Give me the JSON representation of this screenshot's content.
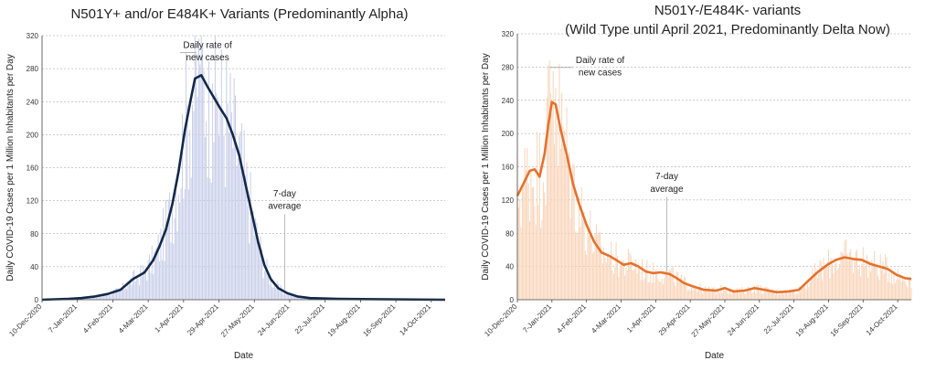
{
  "chart_data": [
    {
      "type": "bar",
      "title": "N501Y+ and/or E484K+ Variants (Predominantly Alpha)",
      "subtitle": "",
      "xlabel": "Date",
      "ylabel": "Daily COVID-19 Cases per 1 Million Inhabitants per Day",
      "ylim": [
        0,
        320
      ],
      "yticks": [
        0,
        40,
        80,
        120,
        160,
        200,
        240,
        280,
        320
      ],
      "xlim": [
        "2020-12-10",
        "2021-10-25"
      ],
      "xticks": [
        "10-Dec-2020",
        "7-Jan-2021",
        "4-Feb-2021",
        "4-Mar-2021",
        "1-Apr-2021",
        "29-Apr-2021",
        "27-May-2021",
        "24-Jun-2021",
        "22-Jul-2021",
        "19-Aug-2021",
        "16-Sep-2021",
        "14-Oct-2021"
      ],
      "grid": "horizontal",
      "colors": {
        "bars": "#c7cde8",
        "line": "#13294b"
      },
      "annotations": [
        {
          "text": "Daily rate of",
          "x": "2021-04-20",
          "y": 305
        },
        {
          "text": "new cases",
          "x": "2021-04-20",
          "y": 290
        },
        {
          "text": "7-day",
          "x": "2021-06-20",
          "y": 125
        },
        {
          "text": "average",
          "x": "2021-06-20",
          "y": 110
        }
      ],
      "series": [
        {
          "type": "line",
          "points": [
            [
              "2020-12-10",
              0
            ],
            [
              "2020-12-20",
              0.5
            ],
            [
              "2020-12-31",
              1
            ],
            [
              "2021-01-10",
              2
            ],
            [
              "2021-01-21",
              4
            ],
            [
              "2021-01-31",
              7
            ],
            [
              "2021-02-10",
              12
            ],
            [
              "2021-02-20",
              25
            ],
            [
              "2021-03-01",
              33
            ],
            [
              "2021-03-08",
              48
            ],
            [
              "2021-03-13",
              65
            ],
            [
              "2021-03-18",
              85
            ],
            [
              "2021-03-23",
              115
            ],
            [
              "2021-03-28",
              155
            ],
            [
              "2021-04-02",
              205
            ],
            [
              "2021-04-07",
              245
            ],
            [
              "2021-04-10",
              268
            ],
            [
              "2021-04-15",
              272
            ],
            [
              "2021-04-20",
              258
            ],
            [
              "2021-04-25",
              245
            ],
            [
              "2021-04-30",
              232
            ],
            [
              "2021-05-05",
              220
            ],
            [
              "2021-05-10",
              200
            ],
            [
              "2021-05-15",
              175
            ],
            [
              "2021-05-20",
              140
            ],
            [
              "2021-05-25",
              105
            ],
            [
              "2021-05-30",
              70
            ],
            [
              "2021-06-04",
              42
            ],
            [
              "2021-06-09",
              25
            ],
            [
              "2021-06-15",
              14
            ],
            [
              "2021-06-22",
              8
            ],
            [
              "2021-06-30",
              4
            ],
            [
              "2021-07-10",
              2
            ],
            [
              "2021-08-01",
              1
            ],
            [
              "2021-10-25",
              0
            ]
          ]
        },
        {
          "type": "bar",
          "points": [
            [
              "2021-04-11",
              298
            ],
            [
              "2021-04-14",
              285
            ],
            [
              "2021-04-17",
              278
            ],
            [
              "2021-04-21",
              288
            ],
            [
              "2021-04-24",
              262
            ],
            [
              "2021-04-28",
              245
            ]
          ]
        }
      ]
    },
    {
      "type": "bar",
      "title": "N501Y-/E484K- variants",
      "subtitle": "(Wild Type until April 2021, Predominantly Delta Now)",
      "xlabel": "Date",
      "ylabel": "Daily COVID-19 Cases per 1 Million Inhabitants per Day",
      "ylim": [
        0,
        320
      ],
      "yticks": [
        0,
        40,
        80,
        120,
        160,
        200,
        240,
        280,
        320
      ],
      "xlim": [
        "2020-12-10",
        "2021-10-25"
      ],
      "xticks": [
        "10-Dec-2020",
        "7-Jan-2021",
        "4-Feb-2021",
        "4-Mar-2021",
        "1-Apr-2021",
        "29-Apr-2021",
        "27-May-2021",
        "24-Jun-2021",
        "22-Jul-2021",
        "19-Aug-2021",
        "16-Sep-2021",
        "14-Oct-2021"
      ],
      "grid": "horizontal",
      "colors": {
        "bars": "#f9d3b6",
        "line": "#e8702a"
      },
      "annotations": [
        {
          "text": "Daily rate of",
          "x": "2021-02-15",
          "y": 285
        },
        {
          "text": "new cases",
          "x": "2021-02-15",
          "y": 270
        },
        {
          "text": "7-day",
          "x": "2021-04-10",
          "y": 145
        },
        {
          "text": "average",
          "x": "2021-04-10",
          "y": 130
        }
      ],
      "series": [
        {
          "type": "line",
          "points": [
            [
              "2020-12-10",
              125
            ],
            [
              "2020-12-15",
              140
            ],
            [
              "2020-12-20",
              155
            ],
            [
              "2020-12-24",
              157
            ],
            [
              "2020-12-28",
              148
            ],
            [
              "2021-01-01",
              175
            ],
            [
              "2021-01-04",
              210
            ],
            [
              "2021-01-07",
              238
            ],
            [
              "2021-01-10",
              235
            ],
            [
              "2021-01-14",
              205
            ],
            [
              "2021-01-19",
              175
            ],
            [
              "2021-01-24",
              140
            ],
            [
              "2021-01-29",
              115
            ],
            [
              "2021-02-04",
              90
            ],
            [
              "2021-02-10",
              70
            ],
            [
              "2021-02-16",
              57
            ],
            [
              "2021-02-22",
              53
            ],
            [
              "2021-03-01",
              47
            ],
            [
              "2021-03-06",
              42
            ],
            [
              "2021-03-12",
              44
            ],
            [
              "2021-03-18",
              40
            ],
            [
              "2021-03-24",
              34
            ],
            [
              "2021-03-30",
              32
            ],
            [
              "2021-04-05",
              33
            ],
            [
              "2021-04-12",
              31
            ],
            [
              "2021-04-18",
              26
            ],
            [
              "2021-04-24",
              20
            ],
            [
              "2021-05-01",
              16
            ],
            [
              "2021-05-10",
              12
            ],
            [
              "2021-05-20",
              11
            ],
            [
              "2021-05-27",
              14
            ],
            [
              "2021-06-03",
              10
            ],
            [
              "2021-06-12",
              11
            ],
            [
              "2021-06-20",
              14
            ],
            [
              "2021-06-28",
              12
            ],
            [
              "2021-07-08",
              9
            ],
            [
              "2021-07-18",
              10
            ],
            [
              "2021-07-26",
              12
            ],
            [
              "2021-08-02",
              22
            ],
            [
              "2021-08-10",
              33
            ],
            [
              "2021-08-18",
              42
            ],
            [
              "2021-08-25",
              48
            ],
            [
              "2021-09-01",
              51
            ],
            [
              "2021-09-08",
              49
            ],
            [
              "2021-09-15",
              48
            ],
            [
              "2021-09-22",
              43
            ],
            [
              "2021-09-29",
              40
            ],
            [
              "2021-10-06",
              37
            ],
            [
              "2021-10-13",
              30
            ],
            [
              "2021-10-20",
              26
            ],
            [
              "2021-10-25",
              25
            ]
          ]
        },
        {
          "type": "bar",
          "points": [
            [
              "2021-01-05",
              288
            ],
            [
              "2021-01-08",
              275
            ],
            [
              "2021-01-10",
              255
            ]
          ]
        }
      ]
    }
  ]
}
